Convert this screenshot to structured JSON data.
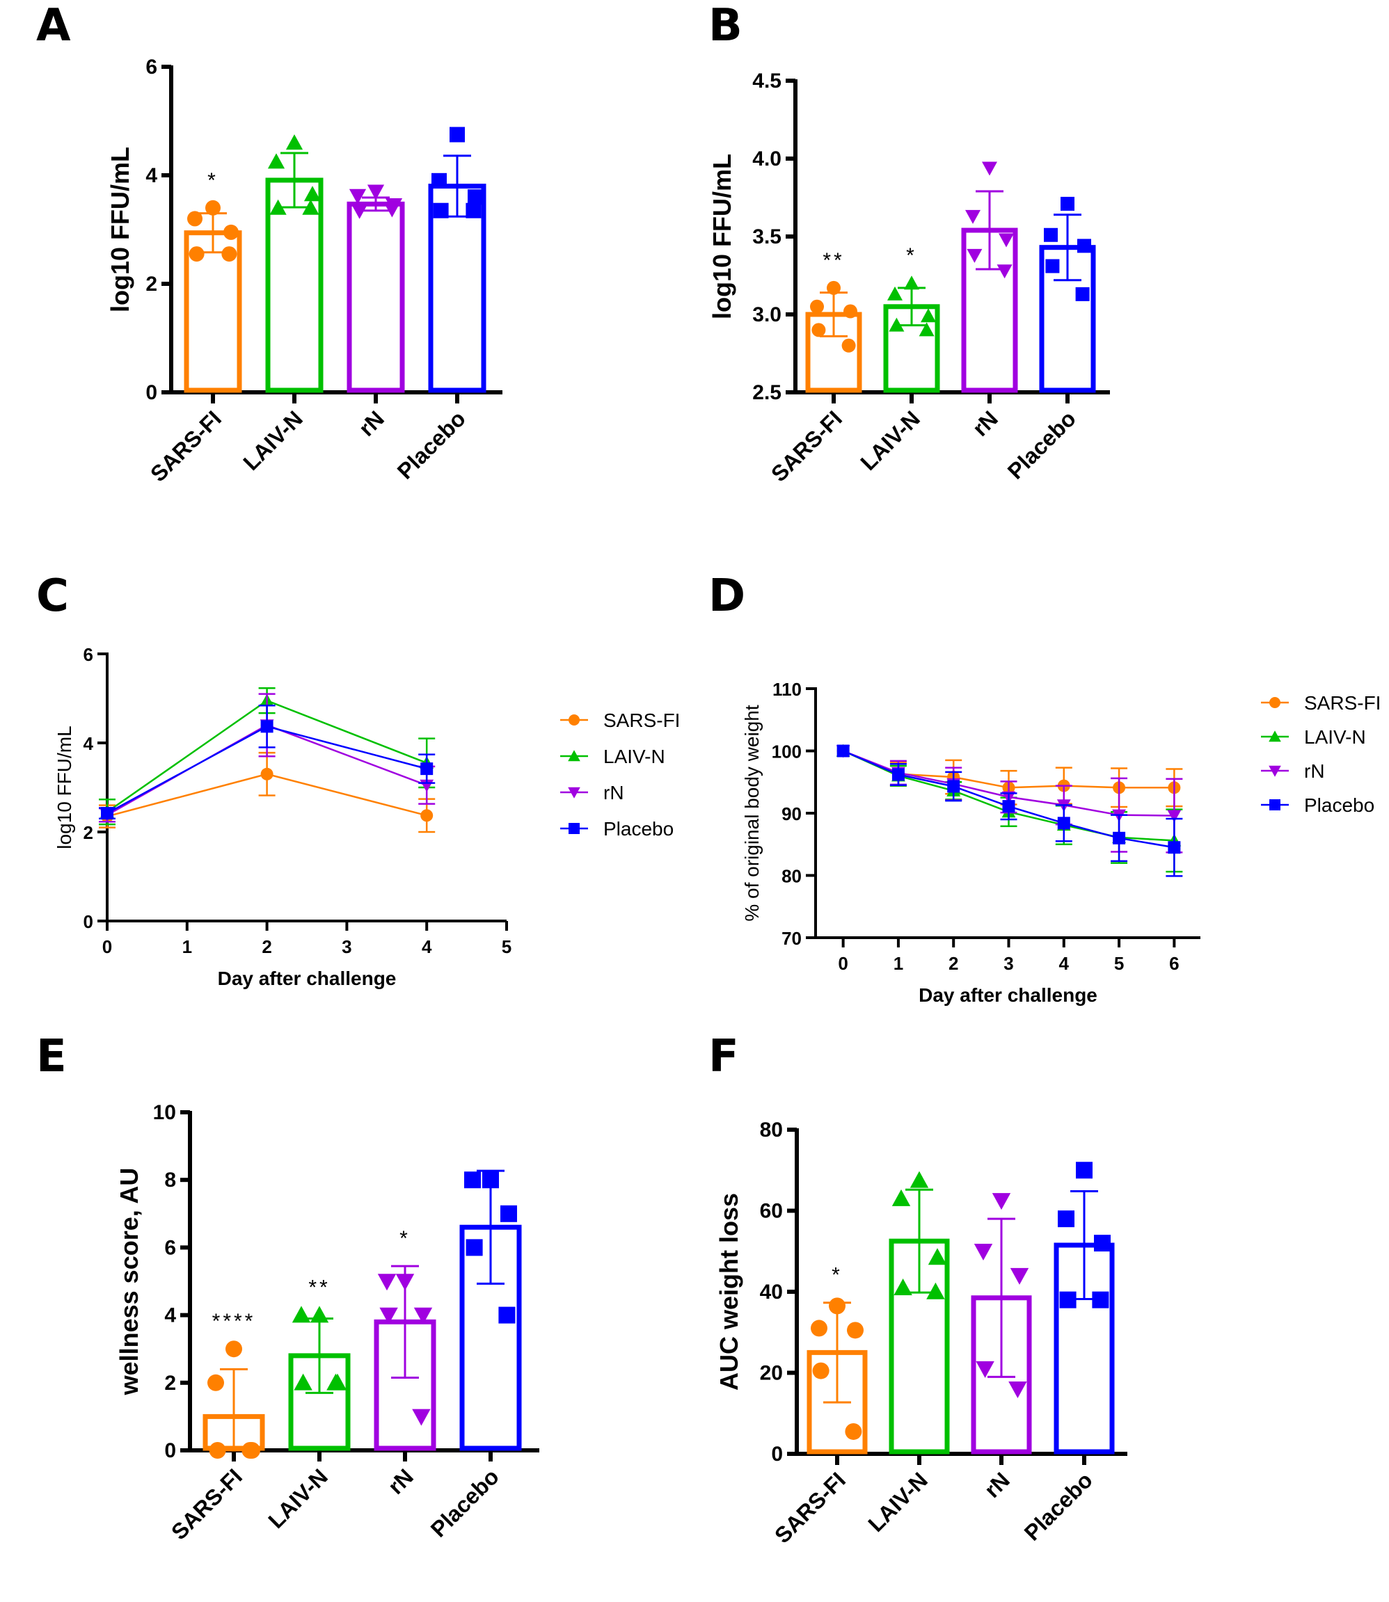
{
  "colors": {
    "SARS-FI": "#FF8000",
    "LAIV-N": "#00C000",
    "rN": "#A000E0",
    "Placebo": "#0000FF"
  },
  "chart_data": [
    {
      "id": "A",
      "panel_label": "A",
      "type": "bar",
      "ylabel": "log10 FFU/mL",
      "xlabel": "",
      "ylim": [
        0,
        6
      ],
      "yticks": [
        0,
        2,
        4,
        6
      ],
      "ytick_labels": [
        "0",
        "2",
        "4",
        "6"
      ],
      "categories": [
        "SARS-FI",
        "LAIV-N",
        "rN",
        "Placebo"
      ],
      "markers": [
        "circle",
        "triangle-up",
        "triangle-down",
        "square"
      ],
      "values": [
        2.94,
        3.91,
        3.47,
        3.8
      ],
      "errors": [
        0.36,
        0.5,
        0.12,
        0.56
      ],
      "points": [
        [
          3.4,
          3.2,
          2.95,
          2.55,
          2.55
        ],
        [
          4.6,
          4.25,
          3.65,
          3.4,
          3.4
        ],
        [
          3.7,
          3.62,
          3.45,
          3.35,
          3.38
        ],
        [
          4.75,
          3.9,
          3.6,
          3.35,
          3.35
        ]
      ],
      "significance": [
        "*",
        "",
        "",
        ""
      ]
    },
    {
      "id": "B",
      "panel_label": "B",
      "type": "bar",
      "ylabel": "log10 FFU/mL",
      "xlabel": "",
      "ylim": [
        2.5,
        4.5
      ],
      "yticks": [
        2.5,
        3.0,
        3.5,
        4.0,
        4.5
      ],
      "ytick_labels": [
        "2.5",
        "3.0",
        "3.5",
        "4.0",
        "4.5"
      ],
      "categories": [
        "SARS-FI",
        "LAIV-N",
        "rN",
        "Placebo"
      ],
      "markers": [
        "circle",
        "triangle-up",
        "triangle-down",
        "square"
      ],
      "values": [
        3.0,
        3.05,
        3.54,
        3.43
      ],
      "errors": [
        0.14,
        0.12,
        0.25,
        0.21
      ],
      "points": [
        [
          3.17,
          3.05,
          3.02,
          2.9,
          2.8
        ],
        [
          3.2,
          3.13,
          2.99,
          2.93,
          2.9
        ],
        [
          3.94,
          3.63,
          3.48,
          3.38,
          3.28
        ],
        [
          3.71,
          3.51,
          3.44,
          3.31,
          3.13
        ]
      ],
      "significance": [
        "**",
        "*",
        "",
        ""
      ]
    },
    {
      "id": "C",
      "panel_label": "C",
      "type": "line",
      "ylabel": "log10 FFU/mL",
      "xlabel": "Day after challenge",
      "xlim": [
        0,
        5
      ],
      "ylim": [
        0,
        6
      ],
      "xticks": [
        0,
        1,
        2,
        3,
        4,
        5
      ],
      "xtick_labels": [
        "0",
        "1",
        "2",
        "3",
        "4",
        "5"
      ],
      "yticks": [
        0,
        2,
        4,
        6
      ],
      "ytick_labels": [
        "0",
        "2",
        "4",
        "6"
      ],
      "x": [
        0,
        2,
        4
      ],
      "legend_position": "right",
      "series": [
        {
          "name": "SARS-FI",
          "marker": "circle",
          "values": [
            2.35,
            3.3,
            2.37
          ],
          "errors": [
            0.25,
            0.48,
            0.37
          ]
        },
        {
          "name": "LAIV-N",
          "marker": "triangle-up",
          "values": [
            2.45,
            4.95,
            3.55
          ],
          "errors": [
            0.28,
            0.28,
            0.55
          ]
        },
        {
          "name": "rN",
          "marker": "triangle-down",
          "values": [
            2.38,
            4.4,
            3.05
          ],
          "errors": [
            0.15,
            0.7,
            0.42
          ]
        },
        {
          "name": "Placebo",
          "marker": "square",
          "values": [
            2.42,
            4.37,
            3.42
          ],
          "errors": [
            0.12,
            0.47,
            0.32
          ]
        }
      ]
    },
    {
      "id": "D",
      "panel_label": "D",
      "type": "line",
      "ylabel": "% of original body weight",
      "xlabel": "Day after challenge",
      "xlim": [
        -0.5,
        6.5
      ],
      "ylim": [
        70,
        110
      ],
      "xticks": [
        0,
        1,
        2,
        3,
        4,
        5,
        6
      ],
      "xtick_labels": [
        "0",
        "1",
        "2",
        "3",
        "4",
        "5",
        "6"
      ],
      "yticks": [
        70,
        80,
        90,
        100,
        110
      ],
      "ytick_labels": [
        "70",
        "80",
        "90",
        "100",
        "110"
      ],
      "x": [
        0,
        1,
        2,
        3,
        4,
        5,
        6
      ],
      "legend_position": "right",
      "series": [
        {
          "name": "SARS-FI",
          "marker": "circle",
          "values": [
            100,
            96.3,
            95.8,
            94.1,
            94.4,
            94.1,
            94.1
          ],
          "errors": [
            0,
            1.9,
            2.7,
            2.7,
            2.9,
            3.1,
            3.0
          ]
        },
        {
          "name": "LAIV-N",
          "marker": "triangle-up",
          "values": [
            100,
            96.0,
            93.6,
            90.2,
            88.1,
            86.1,
            85.6
          ],
          "errors": [
            0,
            1.6,
            1.4,
            2.3,
            3.1,
            4.1,
            5.0
          ]
        },
        {
          "name": "rN",
          "marker": "triangle-down",
          "values": [
            100,
            96.5,
            94.7,
            92.6,
            91.3,
            89.7,
            89.6
          ],
          "errors": [
            0,
            1.9,
            2.6,
            2.5,
            3.1,
            5.9,
            5.9
          ]
        },
        {
          "name": "Placebo",
          "marker": "square",
          "values": [
            100,
            96.2,
            94.3,
            91.1,
            88.4,
            86.0,
            84.5
          ],
          "errors": [
            0,
            1.7,
            2.3,
            2.1,
            2.9,
            3.7,
            4.6
          ]
        }
      ]
    },
    {
      "id": "E",
      "panel_label": "E",
      "type": "bar",
      "ylabel": "wellness score, AU",
      "xlabel": "",
      "ylim": [
        0,
        10
      ],
      "yticks": [
        0,
        2,
        4,
        6,
        8,
        10
      ],
      "ytick_labels": [
        "0",
        "2",
        "4",
        "6",
        "8",
        "10"
      ],
      "categories": [
        "SARS-FI",
        "LAIV-N",
        "rN",
        "Placebo"
      ],
      "markers": [
        "circle",
        "triangle-up",
        "triangle-down",
        "square"
      ],
      "values": [
        1.0,
        2.8,
        3.8,
        6.6
      ],
      "errors": [
        1.4,
        1.1,
        1.65,
        1.67
      ],
      "points": [
        [
          3,
          2,
          0,
          0,
          0
        ],
        [
          4,
          4,
          2,
          2,
          2
        ],
        [
          5,
          5,
          4,
          4,
          1
        ],
        [
          8,
          8,
          7,
          6,
          4
        ]
      ],
      "significance": [
        "****",
        "**",
        "*",
        ""
      ]
    },
    {
      "id": "F",
      "panel_label": "F",
      "type": "bar",
      "ylabel": "AUC weight loss",
      "xlabel": "",
      "ylim": [
        0,
        80
      ],
      "yticks": [
        0,
        20,
        40,
        60,
        80
      ],
      "ytick_labels": [
        "0",
        "20",
        "40",
        "60",
        "80"
      ],
      "categories": [
        "SARS-FI",
        "LAIV-N",
        "rN",
        "Placebo"
      ],
      "markers": [
        "circle",
        "triangle-up",
        "triangle-down",
        "square"
      ],
      "values": [
        25.0,
        52.5,
        38.5,
        51.5
      ],
      "errors": [
        12.3,
        12.7,
        19.5,
        13.3
      ],
      "points": [
        [
          36.5,
          31,
          30.5,
          20.5,
          5.5
        ],
        [
          67.5,
          63,
          48.5,
          41,
          40
        ],
        [
          62.5,
          50,
          44,
          21,
          16
        ],
        [
          70,
          58,
          52,
          38,
          38
        ]
      ],
      "significance": [
        "*",
        "",
        "",
        ""
      ]
    }
  ]
}
